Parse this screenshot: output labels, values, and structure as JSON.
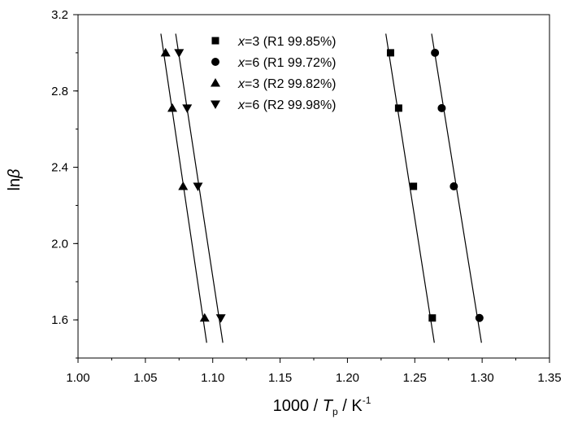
{
  "chart_data": {
    "type": "scatter",
    "xlabel": {
      "main": "1000 / ",
      "var": "T",
      "sub": "p",
      "unit": " / K",
      "sup": "-1"
    },
    "ylabel": {
      "main": "ln",
      "var": "β"
    },
    "xlim": [
      1.0,
      1.35
    ],
    "ylim": [
      1.4,
      3.2
    ],
    "xticks": [
      "1.00",
      "1.05",
      "1.10",
      "1.15",
      "1.20",
      "1.25",
      "1.30",
      "1.35"
    ],
    "yticks": [
      "1.6",
      "2.0",
      "2.4",
      "2.8",
      "3.2"
    ],
    "legend_position": "top-left",
    "series": [
      {
        "name": "x=3 (R1 99.85%)",
        "label_var": "x",
        "label_rest": "=3 (R1 99.85%)",
        "marker": "square",
        "x": [
          1.263,
          1.249,
          1.238,
          1.232
        ],
        "y": [
          1.61,
          2.3,
          2.71,
          3.0
        ],
        "fit": {
          "x": [
            1.2285,
            1.2645
          ],
          "y": [
            3.1,
            1.48
          ]
        }
      },
      {
        "name": "x=6 (R1 99.72%)",
        "label_var": "x",
        "label_rest": "=6 (R1 99.72%)",
        "marker": "circle",
        "x": [
          1.298,
          1.279,
          1.27,
          1.265
        ],
        "y": [
          1.61,
          2.3,
          2.71,
          3.0
        ],
        "fit": {
          "x": [
            1.2625,
            1.2995
          ],
          "y": [
            3.1,
            1.48
          ]
        }
      },
      {
        "name": "x=3 (R2 99.82%)",
        "label_var": "x",
        "label_rest": "=3 (R2 99.82%)",
        "marker": "triangle-up",
        "x": [
          1.094,
          1.078,
          1.07,
          1.065
        ],
        "y": [
          1.61,
          2.3,
          2.71,
          3.0
        ],
        "fit": {
          "x": [
            1.0615,
            1.0955
          ],
          "y": [
            3.1,
            1.48
          ]
        }
      },
      {
        "name": "x=6 (R2 99.98%)",
        "label_var": "x",
        "label_rest": "=6 (R2 99.98%)",
        "marker": "triangle-down",
        "x": [
          1.106,
          1.089,
          1.081,
          1.075
        ],
        "y": [
          1.61,
          2.3,
          2.71,
          3.0
        ],
        "fit": {
          "x": [
            1.0725,
            1.1075
          ],
          "y": [
            3.1,
            1.48
          ]
        }
      }
    ]
  }
}
